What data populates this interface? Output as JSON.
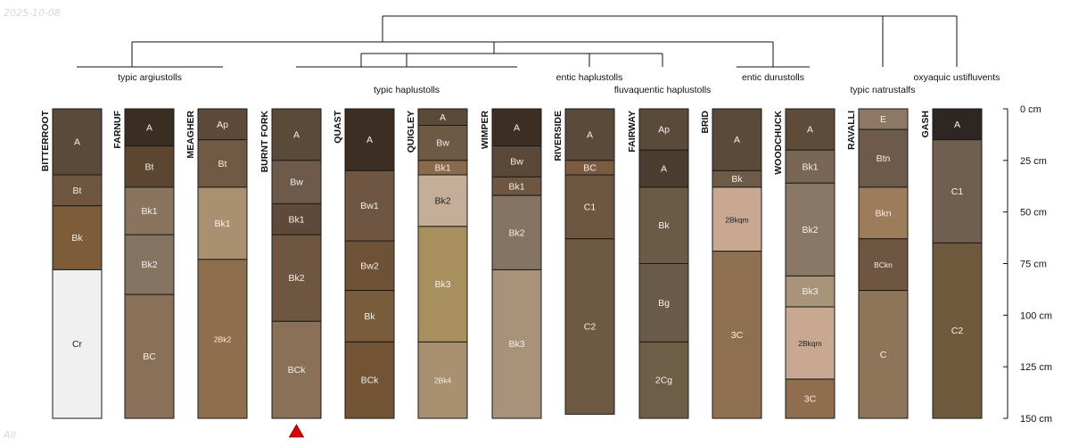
{
  "date_label": "2025-10-08",
  "corner_label": "All",
  "chart_data": {
    "type": "soil-profile-sketch",
    "depth_unit": "cm",
    "depth_range": [
      0,
      150
    ],
    "depth_axis": {
      "ticks": [
        0,
        25,
        50,
        75,
        100,
        125,
        150
      ],
      "labels": [
        "0 cm",
        "25 cm",
        "50 cm",
        "75 cm",
        "100 cm",
        "125 cm",
        "150 cm"
      ]
    },
    "groups": [
      {
        "label": "typic argiustolls",
        "profiles": [
          "BITTERROOT",
          "FARNUF",
          "MEAGHER"
        ]
      },
      {
        "label": "typic haplustolls",
        "profiles": [
          "BURNT FORK",
          "QUAST",
          "QUIGLEY",
          "WIMPER"
        ]
      },
      {
        "label": "entic haplustolls",
        "profiles": [
          "RIVERSIDE"
        ]
      },
      {
        "label": "fluvaquentic haplustolls",
        "profiles": [
          "FAIRWAY"
        ]
      },
      {
        "label": "entic durustolls",
        "profiles": [
          "BRID",
          "WOODCHUCK"
        ]
      },
      {
        "label": "typic natrustalfs",
        "profiles": [
          "RAVALLI"
        ]
      },
      {
        "label": "oxyaquic ustifluvents",
        "profiles": [
          "GASH"
        ]
      }
    ],
    "marker": {
      "profile": "BURNT FORK",
      "shape": "triangle",
      "color": "#e00000"
    },
    "profiles": [
      {
        "name": "BITTERROOT",
        "horizons": [
          {
            "name": "A",
            "top": 0,
            "bottom": 32,
            "color": "#5a4a3a"
          },
          {
            "name": "Bt",
            "top": 32,
            "bottom": 47,
            "color": "#6e5640"
          },
          {
            "name": "Bk",
            "top": 47,
            "bottom": 78,
            "color": "#7d5c3a"
          },
          {
            "name": "Cr",
            "top": 78,
            "bottom": 150,
            "color": "#f0f0f0"
          }
        ]
      },
      {
        "name": "FARNUF",
        "horizons": [
          {
            "name": "A",
            "top": 0,
            "bottom": 18,
            "color": "#3a2d22"
          },
          {
            "name": "Bt",
            "top": 18,
            "bottom": 38,
            "color": "#5c4632"
          },
          {
            "name": "Bk1",
            "top": 38,
            "bottom": 61,
            "color": "#8a7460"
          },
          {
            "name": "Bk2",
            "top": 61,
            "bottom": 90,
            "color": "#857462"
          },
          {
            "name": "BC",
            "top": 90,
            "bottom": 150,
            "color": "#8a7058"
          }
        ]
      },
      {
        "name": "MEAGHER",
        "horizons": [
          {
            "name": "Ap",
            "top": 0,
            "bottom": 15,
            "color": "#5e4a38"
          },
          {
            "name": "Bt",
            "top": 15,
            "bottom": 38,
            "color": "#705a44"
          },
          {
            "name": "Bk1",
            "top": 38,
            "bottom": 73,
            "color": "#a89070"
          },
          {
            "name": "2Bk2",
            "top": 73,
            "bottom": 150,
            "color": "#8e6e4c"
          }
        ]
      },
      {
        "name": "BURNT FORK",
        "horizons": [
          {
            "name": "A",
            "top": 0,
            "bottom": 25,
            "color": "#5a4a3a"
          },
          {
            "name": "Bw",
            "top": 25,
            "bottom": 46,
            "color": "#6e5a4a"
          },
          {
            "name": "Bk1",
            "top": 46,
            "bottom": 61,
            "color": "#5e4a3a"
          },
          {
            "name": "Bk2",
            "top": 61,
            "bottom": 103,
            "color": "#6e5640"
          },
          {
            "name": "BCk",
            "top": 103,
            "bottom": 150,
            "color": "#8a7056"
          }
        ]
      },
      {
        "name": "QUAST",
        "horizons": [
          {
            "name": "A",
            "top": 0,
            "bottom": 30,
            "color": "#3c2e22"
          },
          {
            "name": "Bw1",
            "top": 30,
            "bottom": 64,
            "color": "#6e5642"
          },
          {
            "name": "Bw2",
            "top": 64,
            "bottom": 88,
            "color": "#6e5238"
          },
          {
            "name": "Bk",
            "top": 88,
            "bottom": 113,
            "color": "#785c3c"
          },
          {
            "name": "BCk",
            "top": 113,
            "bottom": 150,
            "color": "#725434"
          }
        ]
      },
      {
        "name": "QUIGLEY",
        "horizons": [
          {
            "name": "A",
            "top": 0,
            "bottom": 8,
            "color": "#5c4a38"
          },
          {
            "name": "Bw",
            "top": 8,
            "bottom": 25,
            "color": "#6e5a44"
          },
          {
            "name": "Bk1",
            "top": 25,
            "bottom": 32,
            "color": "#8a6a4a"
          },
          {
            "name": "Bk2",
            "top": 32,
            "bottom": 57,
            "color": "#c4ae98"
          },
          {
            "name": "Bk3",
            "top": 57,
            "bottom": 113,
            "color": "#a8905e"
          },
          {
            "name": "2Bk4",
            "top": 113,
            "bottom": 150,
            "color": "#a89070"
          }
        ]
      },
      {
        "name": "WIMPER",
        "horizons": [
          {
            "name": "A",
            "top": 0,
            "bottom": 18,
            "color": "#3c2e22"
          },
          {
            "name": "Bw",
            "top": 18,
            "bottom": 33,
            "color": "#5a4838"
          },
          {
            "name": "Bk1",
            "top": 33,
            "bottom": 42,
            "color": "#6e5640"
          },
          {
            "name": "Bk2",
            "top": 42,
            "bottom": 78,
            "color": "#857462"
          },
          {
            "name": "Bk3",
            "top": 78,
            "bottom": 150,
            "color": "#a8927a"
          }
        ]
      },
      {
        "name": "RIVERSIDE",
        "horizons": [
          {
            "name": "A",
            "top": 0,
            "bottom": 25,
            "color": "#5a4a3a"
          },
          {
            "name": "BC",
            "top": 25,
            "bottom": 32,
            "color": "#7a5c40"
          },
          {
            "name": "C1",
            "top": 32,
            "bottom": 63,
            "color": "#6e5640"
          },
          {
            "name": "C2",
            "top": 63,
            "bottom": 148,
            "color": "#6e5a42"
          }
        ]
      },
      {
        "name": "FAIRWAY",
        "horizons": [
          {
            "name": "Ap",
            "top": 0,
            "bottom": 20,
            "color": "#5a4a3a"
          },
          {
            "name": "A",
            "top": 20,
            "bottom": 38,
            "color": "#4a3e30"
          },
          {
            "name": "Bk",
            "top": 38,
            "bottom": 75,
            "color": "#6a5a46"
          },
          {
            "name": "Bg",
            "top": 75,
            "bottom": 113,
            "color": "#6a5a48"
          },
          {
            "name": "2Cg",
            "top": 113,
            "bottom": 150,
            "color": "#6e5e48"
          }
        ]
      },
      {
        "name": "BRID",
        "horizons": [
          {
            "name": "A",
            "top": 0,
            "bottom": 30,
            "color": "#5a4a3a"
          },
          {
            "name": "Bk",
            "top": 30,
            "bottom": 38,
            "color": "#6e5a48"
          },
          {
            "name": "2Bkqm",
            "top": 38,
            "bottom": 69,
            "color": "#c8a890"
          },
          {
            "name": "3C",
            "top": 69,
            "bottom": 150,
            "color": "#8e7050"
          }
        ]
      },
      {
        "name": "WOODCHUCK",
        "horizons": [
          {
            "name": "A",
            "top": 0,
            "bottom": 20,
            "color": "#5e4c3a"
          },
          {
            "name": "Bk1",
            "top": 20,
            "bottom": 36,
            "color": "#7a6656"
          },
          {
            "name": "Bk2",
            "top": 36,
            "bottom": 81,
            "color": "#8a7866"
          },
          {
            "name": "Bk3",
            "top": 81,
            "bottom": 96,
            "color": "#a89478"
          },
          {
            "name": "2Bkqm",
            "top": 96,
            "bottom": 131,
            "color": "#c8a890"
          },
          {
            "name": "3C",
            "top": 131,
            "bottom": 150,
            "color": "#8e6e4c"
          }
        ]
      },
      {
        "name": "RAVALLI",
        "horizons": [
          {
            "name": "E",
            "top": 0,
            "bottom": 10,
            "color": "#8c7864"
          },
          {
            "name": "Btn",
            "top": 10,
            "bottom": 38,
            "color": "#6e5a4a"
          },
          {
            "name": "Bkn",
            "top": 38,
            "bottom": 63,
            "color": "#9c7c5a"
          },
          {
            "name": "BCkn",
            "top": 63,
            "bottom": 88,
            "color": "#6e5640"
          },
          {
            "name": "C",
            "top": 88,
            "bottom": 150,
            "color": "#8e7458"
          }
        ]
      },
      {
        "name": "GASH",
        "horizons": [
          {
            "name": "A",
            "top": 0,
            "bottom": 15,
            "color": "#2e2622"
          },
          {
            "name": "C1",
            "top": 15,
            "bottom": 65,
            "color": "#705e4e"
          },
          {
            "name": "C2",
            "top": 65,
            "bottom": 150,
            "color": "#705a3e"
          }
        ]
      }
    ]
  }
}
